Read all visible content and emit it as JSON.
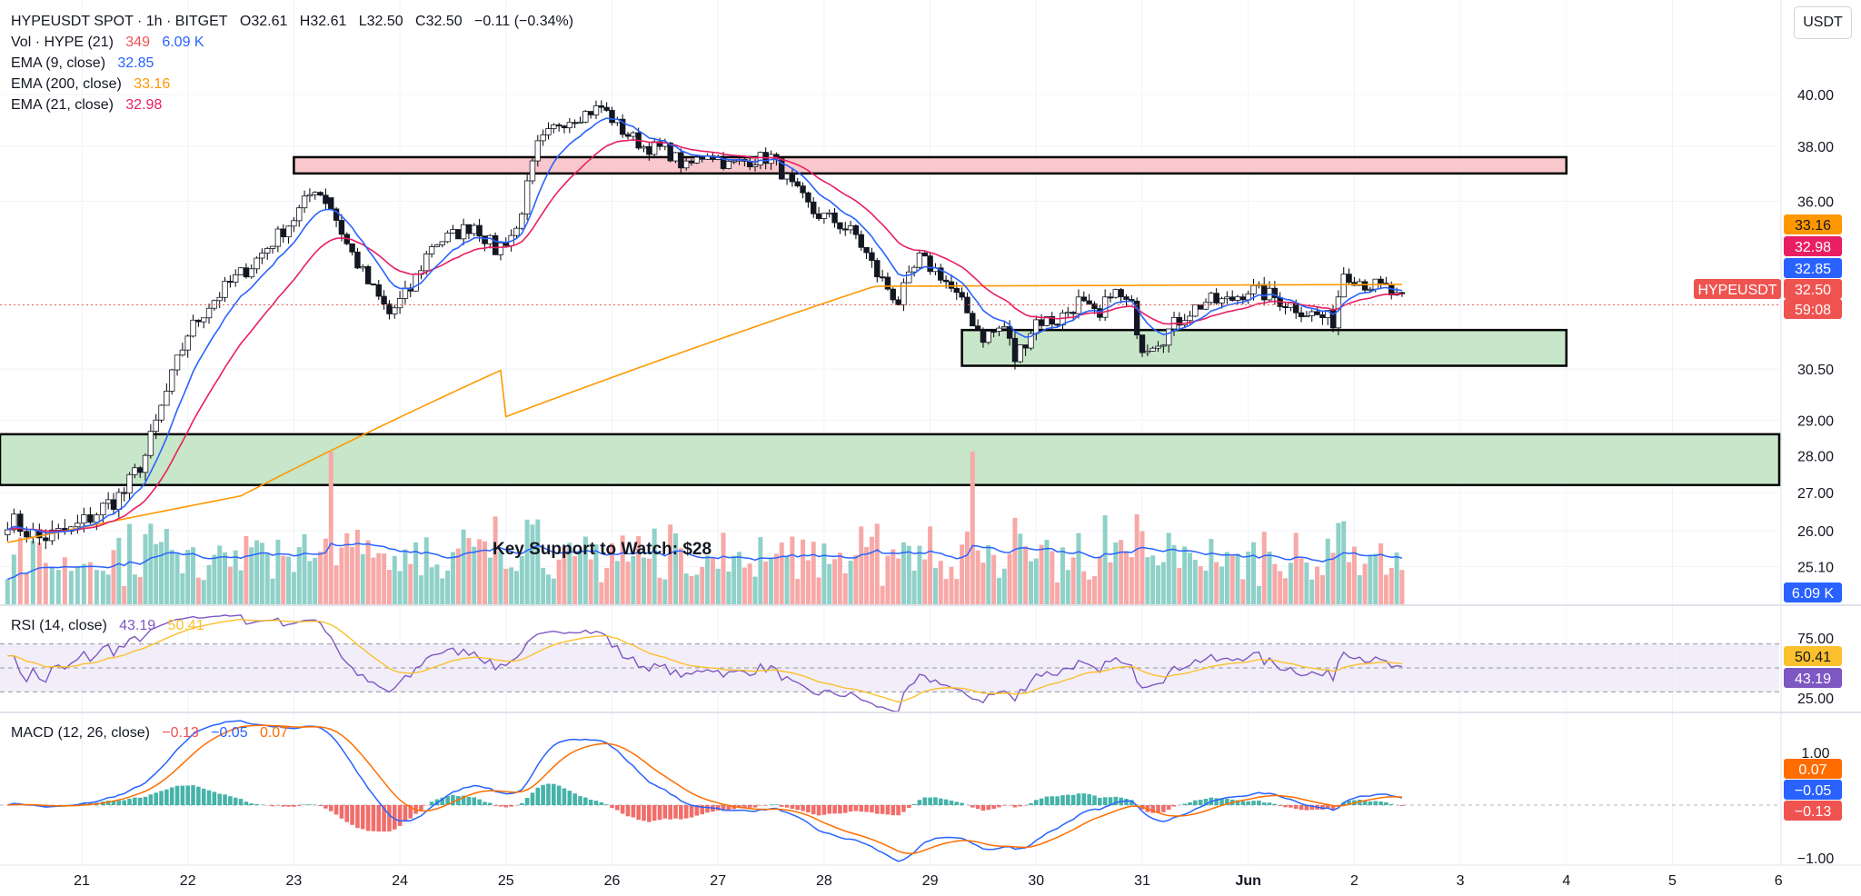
{
  "header": {
    "symbol": "HYPEUSDT SPOT · 1h · BITGET",
    "open_label": "O",
    "open": "32.61",
    "high_label": "H",
    "high": "32.61",
    "low_label": "L",
    "low": "32.50",
    "close_label": "C",
    "close": "32.50",
    "change": "−0.11 (−0.34%)"
  },
  "indicators": {
    "vol": {
      "label": "Vol · HYPE (21)",
      "value": "349",
      "ma": "6.09 K"
    },
    "ema9": {
      "label": "EMA (9, close)",
      "value": "32.85"
    },
    "ema200": {
      "label": "EMA (200, close)",
      "value": "33.16"
    },
    "ema21": {
      "label": "EMA (21, close)",
      "value": "32.98"
    },
    "rsi": {
      "label": "RSI (14, close)",
      "value": "43.19",
      "ma": "50.41"
    },
    "macd": {
      "label": "MACD (12, 26, close)",
      "hist": "−0.13",
      "macd": "−0.05",
      "signal": "0.07"
    }
  },
  "currency_button": "USDT",
  "annotation": "Key Support to Watch: $28",
  "price_badges": {
    "ema200": "33.16",
    "ema21": "32.98",
    "ema9": "32.85",
    "symbol": "HYPEUSDT",
    "last": "32.50",
    "countdown": "59:08",
    "volume": "6.09 K",
    "rsi_ma": "50.41",
    "rsi": "43.19",
    "macd_signal": "0.07",
    "macd": "−0.05",
    "macd_hist": "−0.13"
  },
  "colors": {
    "up": "#26a69a",
    "down": "#ef5350",
    "ema9": "#2962ff",
    "ema21": "#e91e63",
    "ema200": "#ff9800",
    "rsi": "#7e57c2",
    "rsi_ma": "#fbc02d",
    "macd": "#2962ff",
    "signal": "#ff6d00",
    "resistance_zone": "#f8c8cc",
    "support_zone": "#c8e6c9"
  },
  "chart_data": {
    "type": "candlestick",
    "price_axis": {
      "ticks": [
        "40.00",
        "38.00",
        "36.00",
        "30.50",
        "29.00",
        "28.00",
        "27.00",
        "26.00",
        "25.10"
      ],
      "scale": "log"
    },
    "time_axis": {
      "ticks": [
        "21",
        "22",
        "23",
        "24",
        "25",
        "26",
        "27",
        "28",
        "29",
        "30",
        "31",
        "Jun",
        "2",
        "3",
        "4",
        "5",
        "6"
      ]
    },
    "rsi_axis": {
      "ticks": [
        "75.00",
        "25.00"
      ]
    },
    "macd_axis": {
      "ticks": [
        "1.00",
        "−1.00"
      ]
    },
    "zones": [
      {
        "kind": "resistance",
        "price_low": 37.0,
        "price_high": 37.6,
        "from": "23",
        "to": "4"
      },
      {
        "kind": "support",
        "price_low": 30.6,
        "price_high": 31.7,
        "from": "29.3",
        "to": "4"
      },
      {
        "kind": "support",
        "price_low": 27.2,
        "price_high": 28.6,
        "from": "20.3",
        "to": "6"
      }
    ],
    "close_path": [
      [
        20.3,
        26.3
      ],
      [
        20.6,
        25.8
      ],
      [
        20.9,
        26.0
      ],
      [
        21.2,
        26.6
      ],
      [
        21.4,
        27.0
      ],
      [
        21.6,
        28.0
      ],
      [
        21.8,
        29.8
      ],
      [
        22.0,
        31.6
      ],
      [
        22.2,
        32.5
      ],
      [
        22.4,
        33.2
      ],
      [
        22.6,
        33.8
      ],
      [
        22.8,
        34.6
      ],
      [
        23.0,
        35.4
      ],
      [
        23.2,
        36.5
      ],
      [
        23.35,
        35.8
      ],
      [
        23.5,
        34.5
      ],
      [
        23.7,
        33.2
      ],
      [
        23.9,
        32.2
      ],
      [
        24.1,
        33.0
      ],
      [
        24.3,
        34.5
      ],
      [
        24.5,
        34.8
      ],
      [
        24.7,
        35.2
      ],
      [
        24.9,
        34.3
      ],
      [
        25.1,
        35.0
      ],
      [
        25.3,
        38.0
      ],
      [
        25.5,
        38.9
      ],
      [
        25.7,
        39.2
      ],
      [
        25.9,
        39.5
      ],
      [
        26.1,
        38.6
      ],
      [
        26.3,
        38.0
      ],
      [
        26.5,
        37.9
      ],
      [
        26.7,
        37.2
      ],
      [
        26.9,
        37.8
      ],
      [
        27.1,
        37.3
      ],
      [
        27.3,
        37.5
      ],
      [
        27.5,
        37.6
      ],
      [
        27.7,
        36.5
      ],
      [
        27.9,
        35.6
      ],
      [
        28.1,
        35.3
      ],
      [
        28.3,
        34.8
      ],
      [
        28.5,
        33.5
      ],
      [
        28.7,
        32.6
      ],
      [
        28.9,
        34.0
      ],
      [
        29.1,
        33.5
      ],
      [
        29.3,
        32.5
      ],
      [
        29.5,
        31.5
      ],
      [
        29.7,
        31.8
      ],
      [
        29.8,
        30.8
      ],
      [
        30.0,
        32.0
      ],
      [
        30.2,
        32.0
      ],
      [
        30.4,
        32.6
      ],
      [
        30.6,
        32.0
      ],
      [
        30.7,
        33.0
      ],
      [
        30.9,
        32.4
      ],
      [
        31.0,
        31.2
      ],
      [
        31.2,
        31.5
      ],
      [
        31.4,
        32.2
      ],
      [
        31.6,
        32.6
      ],
      [
        31.8,
        32.6
      ],
      [
        32.0,
        33.0
      ],
      [
        32.2,
        32.8
      ],
      [
        32.4,
        32.5
      ],
      [
        32.6,
        32.2
      ],
      [
        32.8,
        32.0
      ],
      [
        32.9,
        33.6
      ],
      [
        33.1,
        33.2
      ],
      [
        33.3,
        33.0
      ],
      [
        33.4,
        32.7
      ],
      [
        33.5,
        32.5
      ]
    ],
    "volume_spikes": [
      [
        23.35,
        "down"
      ],
      [
        29.4,
        "down"
      ]
    ],
    "annotation": {
      "text": "Key Support to Watch: $28",
      "date": "24.9"
    }
  }
}
